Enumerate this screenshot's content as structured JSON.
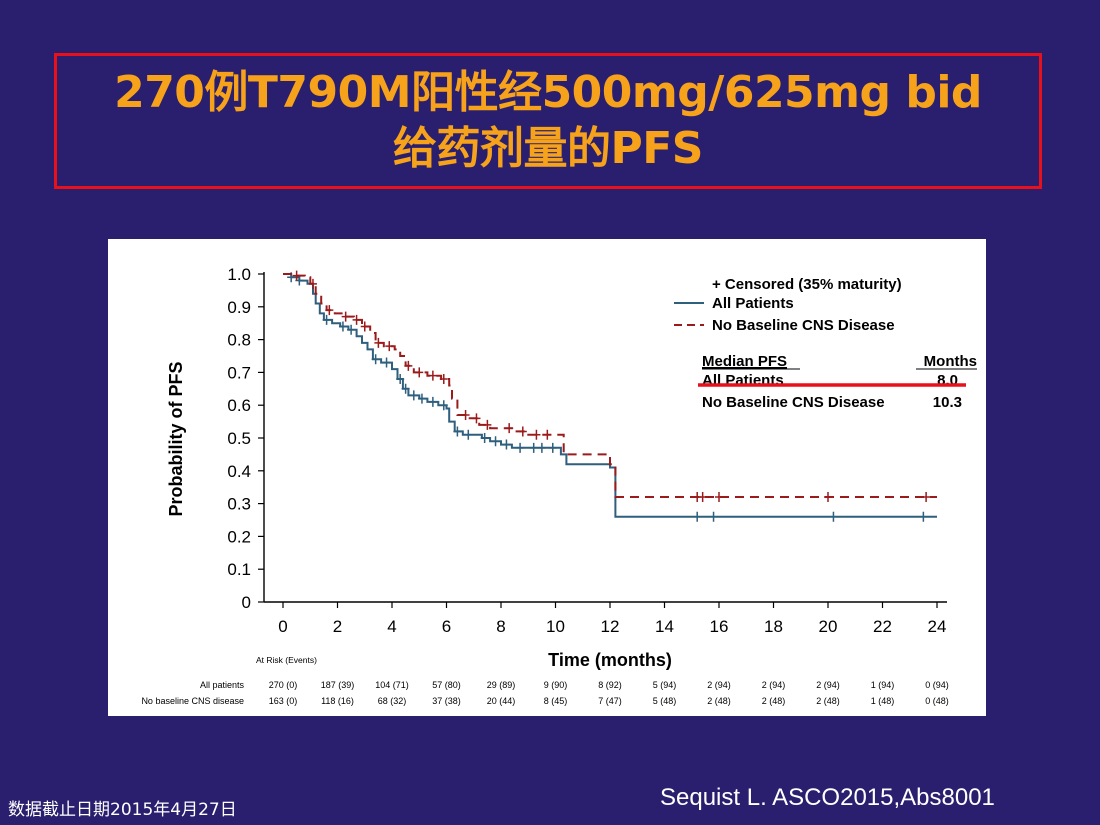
{
  "slide": {
    "title_line1": "270例T790M阳性经500mg/625mg bid",
    "title_line2": "给药剂量的PFS",
    "citation": "Sequist L. ASCO2015,Abs8001",
    "data_cutoff": "数据截止日期2015年4月27日"
  },
  "colors": {
    "background": "#2a1f6e",
    "title": "#f7a21b",
    "frame": "#e8101a",
    "all_patients": "#2e5f7d",
    "no_cns": "#9b1b1b",
    "highlight": "#e8101a"
  },
  "chart_data": {
    "type": "line",
    "xlabel": "Time (months)",
    "ylabel": "Probability of PFS",
    "xlim": [
      0,
      24
    ],
    "ylim": [
      0,
      1
    ],
    "xticks": [
      "0",
      "2",
      "4",
      "6",
      "8",
      "10",
      "12",
      "14",
      "16",
      "18",
      "20",
      "22",
      "24"
    ],
    "yticks": [
      "0",
      "0.1",
      "0.2",
      "0.3",
      "0.4",
      "0.5",
      "0.6",
      "0.7",
      "0.8",
      "0.9",
      "1.0"
    ],
    "legend": {
      "censored": "+ Censored (35%  maturity)",
      "items": [
        "All Patients",
        "No Baseline CNS Disease"
      ]
    },
    "median_table": {
      "header_left": "Median PFS",
      "header_right": "Months",
      "rows": [
        {
          "label": "All Patients",
          "value": "8.0"
        },
        {
          "label": "No Baseline CNS Disease",
          "value": "10.3"
        }
      ]
    },
    "series": [
      {
        "name": "All Patients",
        "style": "solid",
        "x": [
          0,
          0.3,
          0.6,
          0.9,
          1.1,
          1.2,
          1.35,
          1.5,
          1.8,
          2.1,
          2.4,
          2.7,
          2.9,
          3.1,
          3.3,
          3.6,
          4.0,
          4.2,
          4.4,
          4.6,
          5.0,
          5.3,
          5.7,
          6.0,
          6.1,
          6.3,
          6.6,
          7.0,
          7.3,
          7.6,
          8.0,
          8.4,
          9.0,
          9.6,
          10.2,
          10.4,
          11.5,
          12.0,
          12.2,
          24
        ],
        "y": [
          1.0,
          0.99,
          0.98,
          0.97,
          0.94,
          0.91,
          0.88,
          0.86,
          0.85,
          0.84,
          0.83,
          0.81,
          0.79,
          0.77,
          0.74,
          0.73,
          0.71,
          0.68,
          0.65,
          0.63,
          0.62,
          0.61,
          0.6,
          0.59,
          0.55,
          0.52,
          0.51,
          0.51,
          0.5,
          0.49,
          0.48,
          0.47,
          0.47,
          0.47,
          0.45,
          0.42,
          0.42,
          0.41,
          0.26,
          0.26
        ],
        "censors": [
          0.3,
          0.6,
          1.6,
          2.2,
          2.5,
          3.4,
          3.8,
          4.3,
          4.5,
          4.8,
          5.1,
          5.5,
          5.9,
          6.4,
          6.8,
          7.4,
          7.8,
          8.2,
          8.7,
          9.2,
          9.5,
          9.9,
          15.2,
          15.8,
          20.2,
          23.5
        ]
      },
      {
        "name": "No Baseline CNS Disease",
        "style": "dashed",
        "x": [
          0,
          0.4,
          0.8,
          1.0,
          1.2,
          1.4,
          1.6,
          1.9,
          2.2,
          2.6,
          2.9,
          3.2,
          3.4,
          3.7,
          4.1,
          4.3,
          4.5,
          4.8,
          5.3,
          5.8,
          6.1,
          6.2,
          6.4,
          6.8,
          7.2,
          7.6,
          8.0,
          8.5,
          9.0,
          10.3,
          12.0,
          12.2,
          24
        ],
        "y": [
          1.0,
          0.995,
          0.99,
          0.97,
          0.94,
          0.91,
          0.89,
          0.88,
          0.87,
          0.86,
          0.84,
          0.82,
          0.79,
          0.78,
          0.77,
          0.75,
          0.72,
          0.7,
          0.69,
          0.68,
          0.66,
          0.62,
          0.57,
          0.56,
          0.54,
          0.53,
          0.53,
          0.52,
          0.51,
          0.45,
          0.42,
          0.32,
          0.32
        ],
        "censors": [
          0.5,
          1.1,
          1.7,
          2.3,
          2.7,
          3.0,
          3.5,
          3.9,
          4.6,
          5.0,
          5.5,
          5.9,
          6.7,
          7.1,
          7.5,
          8.3,
          8.8,
          9.3,
          9.7,
          15.2,
          15.4,
          16.0,
          20.0,
          23.6
        ]
      }
    ],
    "at_risk": {
      "header": "At Risk (Events)",
      "rows": [
        {
          "label": "All patients",
          "values": [
            "270 (0)",
            "187 (39)",
            "104 (71)",
            "57 (80)",
            "29 (89)",
            "9 (90)",
            "8 (92)",
            "5 (94)",
            "2 (94)",
            "2 (94)",
            "2 (94)",
            "1 (94)",
            "0 (94)"
          ]
        },
        {
          "label": "No baseline CNS disease",
          "values": [
            "163 (0)",
            "118 (16)",
            "68 (32)",
            "37 (38)",
            "20 (44)",
            "8 (45)",
            "7 (47)",
            "5 (48)",
            "2 (48)",
            "2 (48)",
            "2 (48)",
            "1 (48)",
            "0 (48)"
          ]
        }
      ]
    }
  }
}
